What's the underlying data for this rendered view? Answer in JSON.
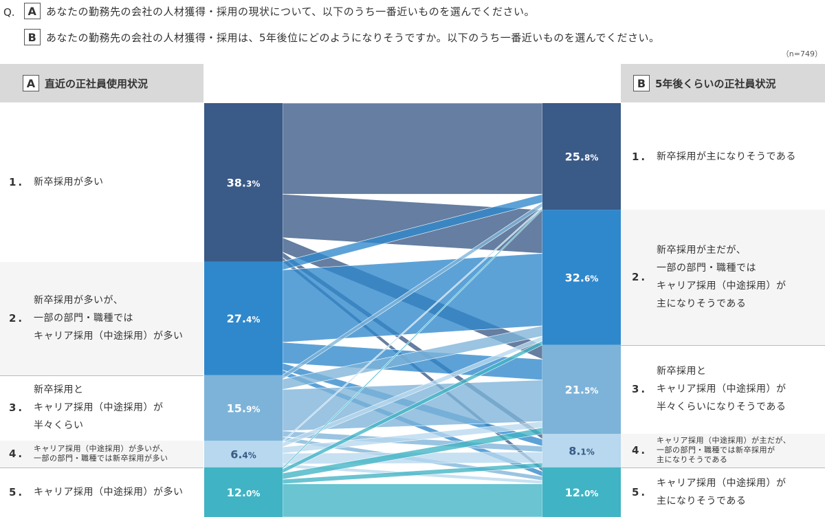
{
  "question": {
    "prefix": "Q.",
    "a_letter": "A",
    "a_text": "あなたの勤務先の会社の人材獲得・採用の現状について、以下のうち一番近いものを選んでください。",
    "b_letter": "B",
    "b_text": "あなたの勤務先の会社の人材獲得・採用は、5年後位にどのようになりそうですか。以下のうち一番近いものを選んでください。",
    "n_note": "（n=749）"
  },
  "left_header": {
    "letter": "A",
    "title": "直近の正社員使用状況"
  },
  "right_header": {
    "letter": "B",
    "title": "5年後くらいの正社員状況"
  },
  "chart_data": {
    "type": "sankey",
    "n": 749,
    "left_nodes": [
      {
        "num": "1.",
        "label": "新卒採用が多い",
        "value": 38.3,
        "value_int": "38.",
        "value_dec": "3%",
        "color": "#3a5a87"
      },
      {
        "num": "2.",
        "label": "新卒採用が多いが、\n一部の部門・職種では\nキャリア採用（中途採用）が多い",
        "value": 27.4,
        "value_int": "27.",
        "value_dec": "4%",
        "color": "#2f88cc"
      },
      {
        "num": "3.",
        "label": "新卒採用と\nキャリア採用（中途採用）が\n半々くらい",
        "value": 15.9,
        "value_int": "15.",
        "value_dec": "9%",
        "color": "#7db3d9"
      },
      {
        "num": "4.",
        "label": "キャリア採用（中途採用）が多いが、\n一部の部門・職種では新卒採用が多い",
        "value": 6.4,
        "value_int": "6.",
        "value_dec": "4%",
        "color": "#b7d8ee"
      },
      {
        "num": "5.",
        "label": "キャリア採用（中途採用）が多い",
        "value": 12.0,
        "value_int": "12.",
        "value_dec": "0%",
        "color": "#40b4c4"
      }
    ],
    "right_nodes": [
      {
        "num": "1.",
        "label": "新卒採用が主になりそうである",
        "value": 25.8,
        "value_int": "25.",
        "value_dec": "8%",
        "color": "#3a5a87"
      },
      {
        "num": "2.",
        "label": "新卒採用が主だが、\n一部の部門・職種では\nキャリア採用（中途採用）が\n主になりそうである",
        "value": 32.6,
        "value_int": "32.",
        "value_dec": "6%",
        "color": "#2f88cc"
      },
      {
        "num": "3.",
        "label": "新卒採用と\nキャリア採用（中途採用）が\n半々くらいになりそうである",
        "value": 21.5,
        "value_int": "21.",
        "value_dec": "5%",
        "color": "#7db3d9"
      },
      {
        "num": "4.",
        "label": "キャリア採用（中途採用）が主だが、\n一部の部門・職種では新卒採用が\n主になりそうである",
        "value": 8.1,
        "value_int": "8.",
        "value_dec": "1%",
        "color": "#b7d8ee"
      },
      {
        "num": "5.",
        "label": "キャリア採用（中途採用）が\n主になりそうである",
        "value": 12.0,
        "value_int": "12.",
        "value_dec": "0%",
        "color": "#40b4c4"
      }
    ],
    "flows": [
      {
        "from": 0,
        "to": 0,
        "value": 22.0
      },
      {
        "from": 0,
        "to": 1,
        "value": 10.5
      },
      {
        "from": 0,
        "to": 2,
        "value": 3.5
      },
      {
        "from": 0,
        "to": 3,
        "value": 1.3
      },
      {
        "from": 0,
        "to": 4,
        "value": 1.0
      },
      {
        "from": 1,
        "to": 0,
        "value": 2.0
      },
      {
        "from": 1,
        "to": 1,
        "value": 17.5
      },
      {
        "from": 1,
        "to": 2,
        "value": 5.0
      },
      {
        "from": 1,
        "to": 3,
        "value": 1.7
      },
      {
        "from": 1,
        "to": 4,
        "value": 1.2
      },
      {
        "from": 2,
        "to": 0,
        "value": 1.0
      },
      {
        "from": 2,
        "to": 1,
        "value": 2.5
      },
      {
        "from": 2,
        "to": 2,
        "value": 10.0
      },
      {
        "from": 2,
        "to": 3,
        "value": 1.4
      },
      {
        "from": 2,
        "to": 4,
        "value": 1.0
      },
      {
        "from": 3,
        "to": 0,
        "value": 0.4
      },
      {
        "from": 3,
        "to": 1,
        "value": 1.1
      },
      {
        "from": 3,
        "to": 2,
        "value": 1.5
      },
      {
        "from": 3,
        "to": 3,
        "value": 2.6
      },
      {
        "from": 3,
        "to": 4,
        "value": 0.8
      },
      {
        "from": 4,
        "to": 0,
        "value": 0.4
      },
      {
        "from": 4,
        "to": 1,
        "value": 1.0
      },
      {
        "from": 4,
        "to": 2,
        "value": 1.5
      },
      {
        "from": 4,
        "to": 3,
        "value": 1.1
      },
      {
        "from": 4,
        "to": 4,
        "value": 8.0
      }
    ]
  }
}
